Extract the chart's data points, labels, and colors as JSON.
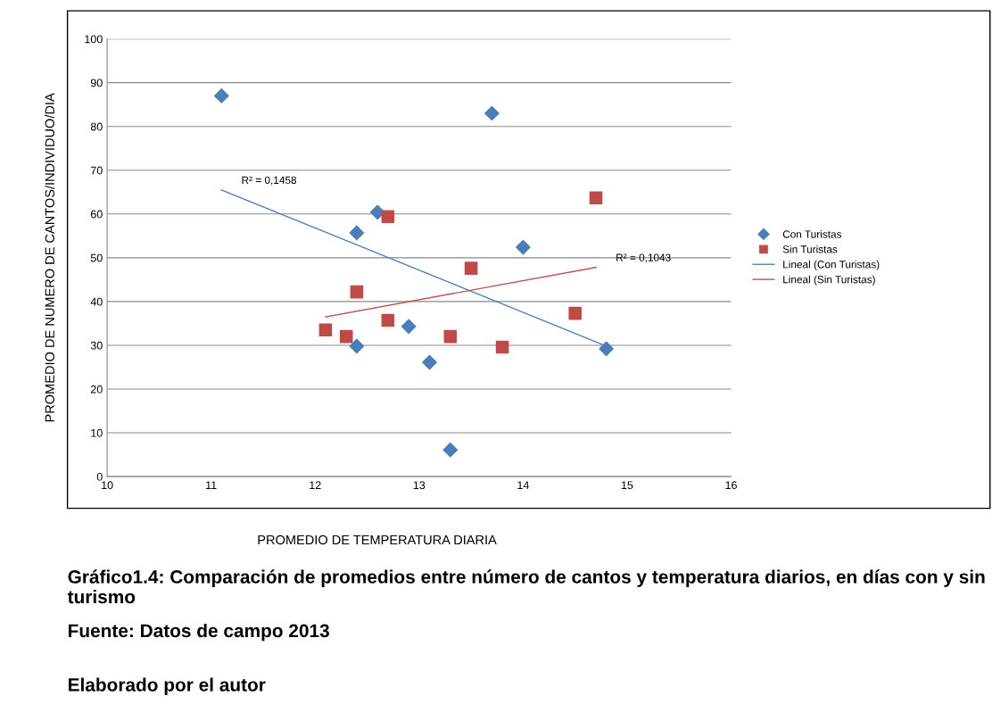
{
  "chart_data": {
    "type": "scatter",
    "xlabel": "PROMEDIO DE TEMPERATURA DIARIA",
    "ylabel": "PROMEDIO DE NUMERO DE CANTOS/INDIVIDUO/DIA",
    "xlim": [
      10,
      16
    ],
    "xticks": [
      10,
      11,
      12,
      13,
      14,
      15,
      16
    ],
    "ylim": [
      0,
      100
    ],
    "yticks": [
      0,
      10,
      20,
      30,
      40,
      50,
      60,
      70,
      80,
      90,
      100
    ],
    "grid": "y",
    "legend": "right",
    "series": [
      {
        "name": "Con Turistas",
        "marker": "diamond",
        "color": "#4a7ebb",
        "x": [
          11.1,
          13.7,
          12.6,
          12.4,
          14.0,
          12.9,
          12.4,
          13.1,
          14.8,
          13.3
        ],
        "values": [
          87,
          83,
          60.4,
          55.7,
          52.4,
          34.3,
          29.8,
          26.1,
          29.2,
          6.1
        ]
      },
      {
        "name": "Sin Turistas",
        "marker": "square",
        "color": "#be4b48",
        "x": [
          12.1,
          12.3,
          12.4,
          12.7,
          12.7,
          13.5,
          13.3,
          13.8,
          14.5,
          14.7
        ],
        "values": [
          33.5,
          32,
          42.2,
          59.4,
          35.7,
          47.6,
          32,
          29.6,
          37.3,
          63.7
        ]
      },
      {
        "name": "Lineal (Con Turistas)",
        "type": "line",
        "marker": "none",
        "color": "#4f81bd",
        "x": [
          11.1,
          14.8
        ],
        "values": [
          65.5,
          29.8
        ]
      },
      {
        "name": "Lineal (Sin Turistas)",
        "type": "line",
        "marker": "none",
        "color": "#c0504d",
        "x": [
          12.1,
          14.7
        ],
        "values": [
          36.5,
          47.8
        ]
      }
    ],
    "annotations": [
      {
        "text": "R² = 0,1458",
        "x": 11.1,
        "y": 65.5
      },
      {
        "text": "R² = 0,1043",
        "x": 14.7,
        "y": 47.8
      },
      "Gráfico1.4: Comparación de promedios entre número de cantos y temperatura diarios, en días con y sin turismo",
      "Fuente: Datos de campo 2013",
      "Elaborado por el autor"
    ]
  }
}
